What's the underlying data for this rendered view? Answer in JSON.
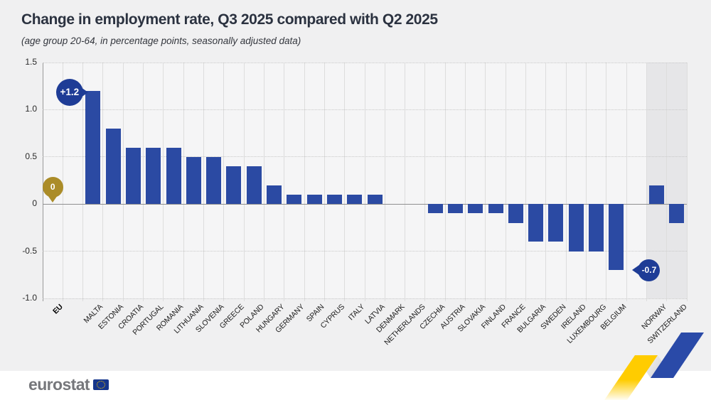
{
  "title": "Change in employment rate, Q3 2025 compared with Q2 2025",
  "subtitle": "(age group 20-64, in percentage points, seasonally adjusted data)",
  "footer": {
    "logo_text": "eurostat"
  },
  "colors": {
    "bar_blue": "#2b4aa3",
    "callout_blue": "#1e3c96",
    "eu_gold": "#ab8c28",
    "band_gray": "#e6e6e8",
    "plot_bg": "#f5f5f6",
    "page_bg": "#f0f0f1",
    "ribbon_yellow": "#ffcc00",
    "ribbon_blue": "#2a4aa8"
  },
  "chart_data": {
    "type": "bar",
    "unit": "percentage points",
    "ylim": [
      -1.0,
      1.5
    ],
    "yticks": [
      1.5,
      1.0,
      0.5,
      0,
      -0.5,
      -1.0
    ],
    "ytick_labels": [
      "1.5",
      "1.0",
      "0.5",
      "0",
      "-0.5",
      "-1.0"
    ],
    "eu_aggregate": {
      "label": "EU",
      "value": 0
    },
    "categories": [
      "MALTA",
      "ESTONIA",
      "CROATIA",
      "PORTUGAL",
      "ROMANIA",
      "LITHUANIA",
      "SLOVENIA",
      "GREECE",
      "POLAND",
      "HUNGARY",
      "GERMANY",
      "SPAIN",
      "CYPRUS",
      "ITALY",
      "LATVIA",
      "DENMARK",
      "NETHERLANDS",
      "CZECHIA",
      "AUSTRIA",
      "SLOVAKIA",
      "FINLAND",
      "FRANCE",
      "BULGARIA",
      "SWEDEN",
      "IRELAND",
      "LUXEMBOURG",
      "BELGIUM"
    ],
    "values": [
      1.2,
      0.8,
      0.6,
      0.6,
      0.6,
      0.5,
      0.5,
      0.4,
      0.4,
      0.2,
      0.1,
      0.1,
      0.1,
      0.1,
      0.1,
      0,
      0,
      -0.1,
      -0.1,
      -0.1,
      -0.1,
      -0.2,
      -0.4,
      -0.4,
      -0.5,
      -0.5,
      -0.7
    ],
    "efta_categories": [
      "NORWAY",
      "SWITZERLAND"
    ],
    "efta_values": [
      0.2,
      -0.2
    ],
    "annotations": [
      {
        "target": "EU",
        "label": "0",
        "style": "gold",
        "tail": "down"
      },
      {
        "target": "MALTA",
        "label": "+1.2",
        "style": "blue",
        "tail": "right"
      },
      {
        "target": "BELGIUM",
        "label": "-0.7",
        "style": "blue",
        "tail": "left"
      }
    ],
    "highlight_band": [
      "NORWAY",
      "SWITZERLAND"
    ],
    "grid": "horizontal dotted lines, solid zero line, light vertical column separators",
    "legend": "none"
  }
}
